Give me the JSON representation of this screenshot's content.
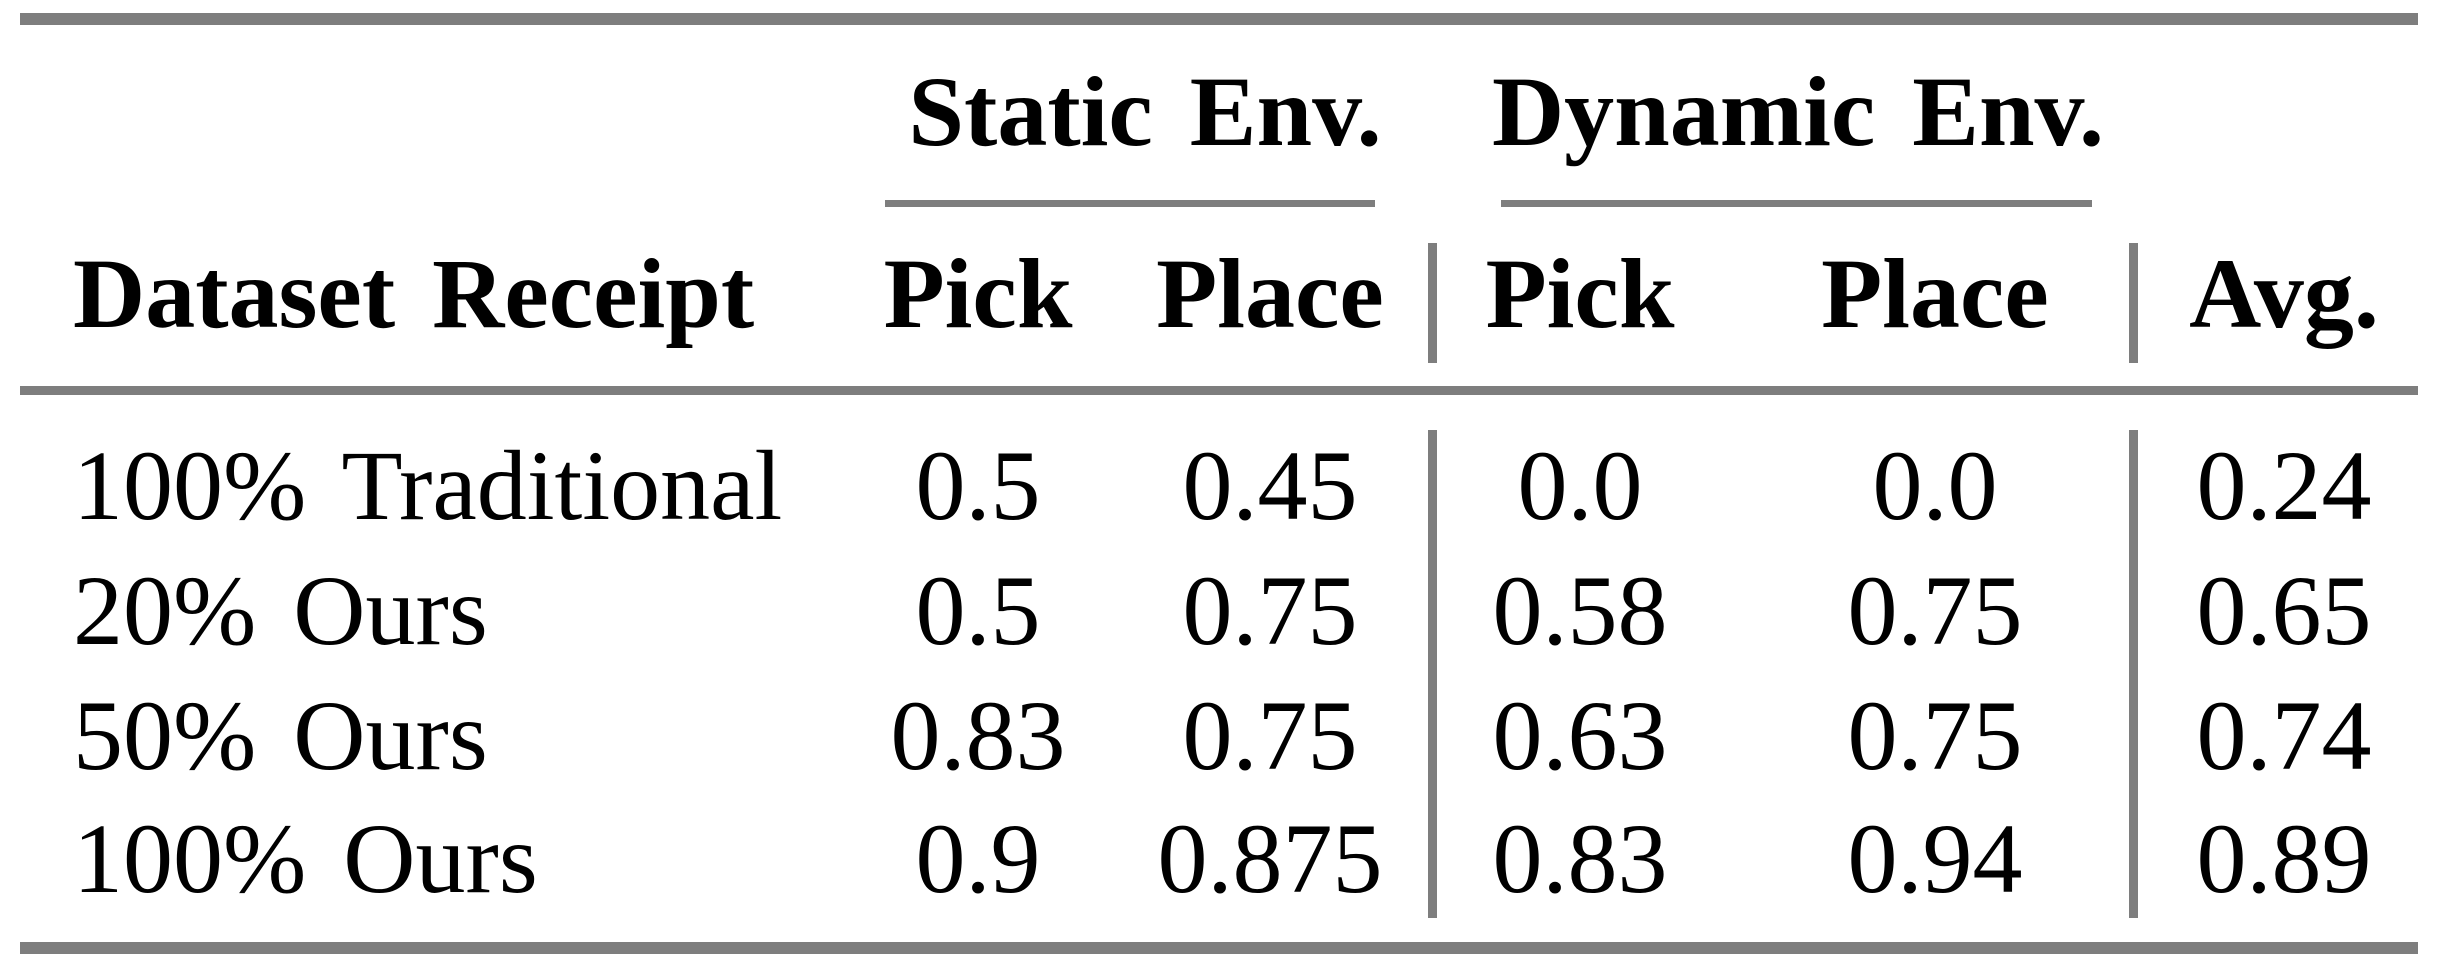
{
  "table": {
    "group_headers": [
      {
        "label": "Static Env."
      },
      {
        "label": "Dynamic Env."
      }
    ],
    "header": {
      "row_label": "Dataset Receipt",
      "static_pick": "Pick",
      "static_place": "Place",
      "dynamic_pick": "Pick",
      "dynamic_place": "Place",
      "avg": "Avg."
    },
    "rows": [
      {
        "label": "100% Traditional",
        "cells": [
          "0.5",
          "0.45",
          "0.0",
          "0.0",
          "0.24"
        ]
      },
      {
        "label": "20% Ours",
        "cells": [
          "0.5",
          "0.75",
          "0.58",
          "0.75",
          "0.65"
        ]
      },
      {
        "label": "50% Ours",
        "cells": [
          "0.83",
          "0.75",
          "0.63",
          "0.75",
          "0.74"
        ]
      },
      {
        "label": "100% Ours",
        "cells": [
          "0.9",
          "0.875",
          "0.83",
          "0.94",
          "0.89"
        ]
      }
    ]
  },
  "colors": {
    "rule": "#7e7e7e",
    "text": "#000000",
    "background": "#ffffff"
  }
}
